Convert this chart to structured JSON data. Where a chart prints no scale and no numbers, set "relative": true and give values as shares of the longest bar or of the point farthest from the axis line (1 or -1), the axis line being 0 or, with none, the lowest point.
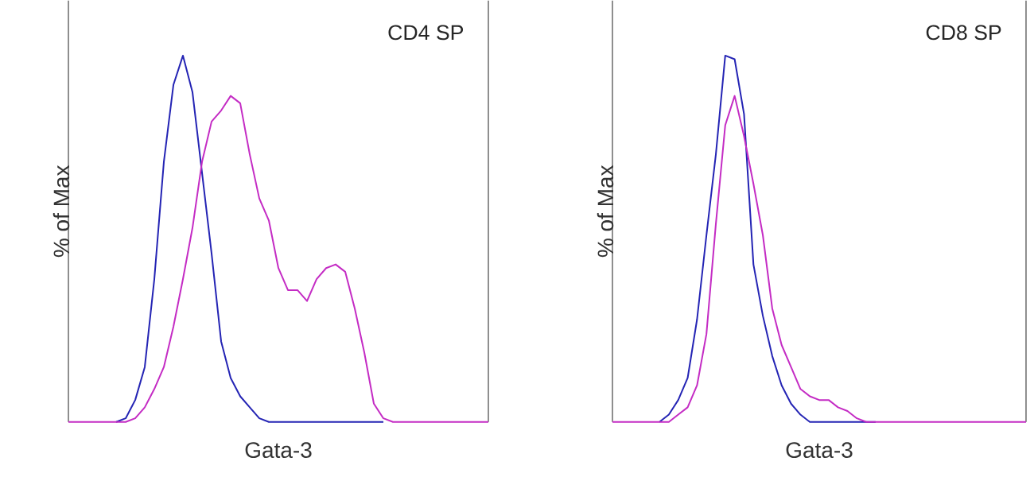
{
  "chart_data": [
    {
      "type": "line",
      "relative": true,
      "title": "CD4 SP",
      "xlabel": "Gata-3",
      "ylabel": "% of Max",
      "categories": [
        null,
        null,
        null,
        null,
        null,
        null,
        null,
        null,
        null,
        null,
        null,
        null,
        null,
        null,
        null,
        null,
        null,
        null,
        null,
        null,
        null,
        null,
        null,
        null,
        null,
        null,
        null,
        null,
        null,
        null,
        null,
        null,
        null,
        null,
        null,
        null,
        null,
        null,
        null,
        null,
        null,
        null,
        null,
        null,
        null
      ],
      "series": [
        {
          "color": "#2424b4",
          "values": [
            null,
            null,
            null,
            null,
            null,
            0,
            0.01,
            0.06,
            0.15,
            0.39,
            0.71,
            0.92,
            1.0,
            0.9,
            0.68,
            0.46,
            0.22,
            0.12,
            0.07,
            0.04,
            0.01,
            0,
            0,
            0,
            0,
            0,
            0,
            0,
            0,
            0,
            0,
            0,
            0,
            0,
            null,
            null,
            null,
            null,
            null,
            null,
            null,
            null,
            null,
            null,
            null
          ]
        },
        {
          "color": "#c42cc4",
          "values": [
            0,
            0,
            0,
            0,
            0,
            0,
            0,
            0.01,
            0.04,
            0.09,
            0.15,
            0.26,
            0.39,
            0.53,
            0.71,
            0.82,
            0.85,
            0.89,
            0.87,
            0.73,
            0.61,
            0.55,
            0.42,
            0.36,
            0.36,
            0.33,
            0.39,
            0.42,
            0.43,
            0.41,
            0.31,
            0.19,
            0.05,
            0.01,
            0,
            0,
            0,
            0,
            0,
            0,
            0,
            0,
            0,
            0,
            0
          ]
        }
      ]
    },
    {
      "type": "line",
      "relative": true,
      "title": "CD8 SP",
      "xlabel": "Gata-3",
      "ylabel": "% of Max",
      "categories": [
        null,
        null,
        null,
        null,
        null,
        null,
        null,
        null,
        null,
        null,
        null,
        null,
        null,
        null,
        null,
        null,
        null,
        null,
        null,
        null,
        null,
        null,
        null,
        null,
        null,
        null,
        null,
        null,
        null,
        null,
        null,
        null,
        null,
        null,
        null,
        null,
        null,
        null,
        null,
        null,
        null,
        null,
        null,
        null,
        null
      ],
      "series": [
        {
          "color": "#2424b4",
          "values": [
            null,
            null,
            null,
            null,
            null,
            0,
            0.02,
            0.06,
            0.12,
            0.28,
            0.51,
            0.73,
            1.0,
            0.99,
            0.84,
            0.43,
            0.29,
            0.18,
            0.1,
            0.05,
            0.02,
            0,
            0,
            0,
            0,
            0,
            0,
            0,
            0,
            null,
            null,
            null,
            null,
            null,
            null,
            null,
            null,
            null,
            null,
            null,
            null,
            null,
            null,
            null,
            null
          ]
        },
        {
          "color": "#c42cc4",
          "values": [
            0,
            0,
            0,
            0,
            0,
            0,
            0,
            0.02,
            0.04,
            0.1,
            0.24,
            0.54,
            0.81,
            0.89,
            0.78,
            0.65,
            0.51,
            0.31,
            0.21,
            0.15,
            0.09,
            0.07,
            0.06,
            0.06,
            0.04,
            0.03,
            0.01,
            0,
            0,
            0,
            0,
            0,
            0,
            0,
            0,
            0,
            0,
            0,
            0,
            0,
            0,
            0,
            0,
            0,
            0
          ]
        }
      ]
    }
  ]
}
